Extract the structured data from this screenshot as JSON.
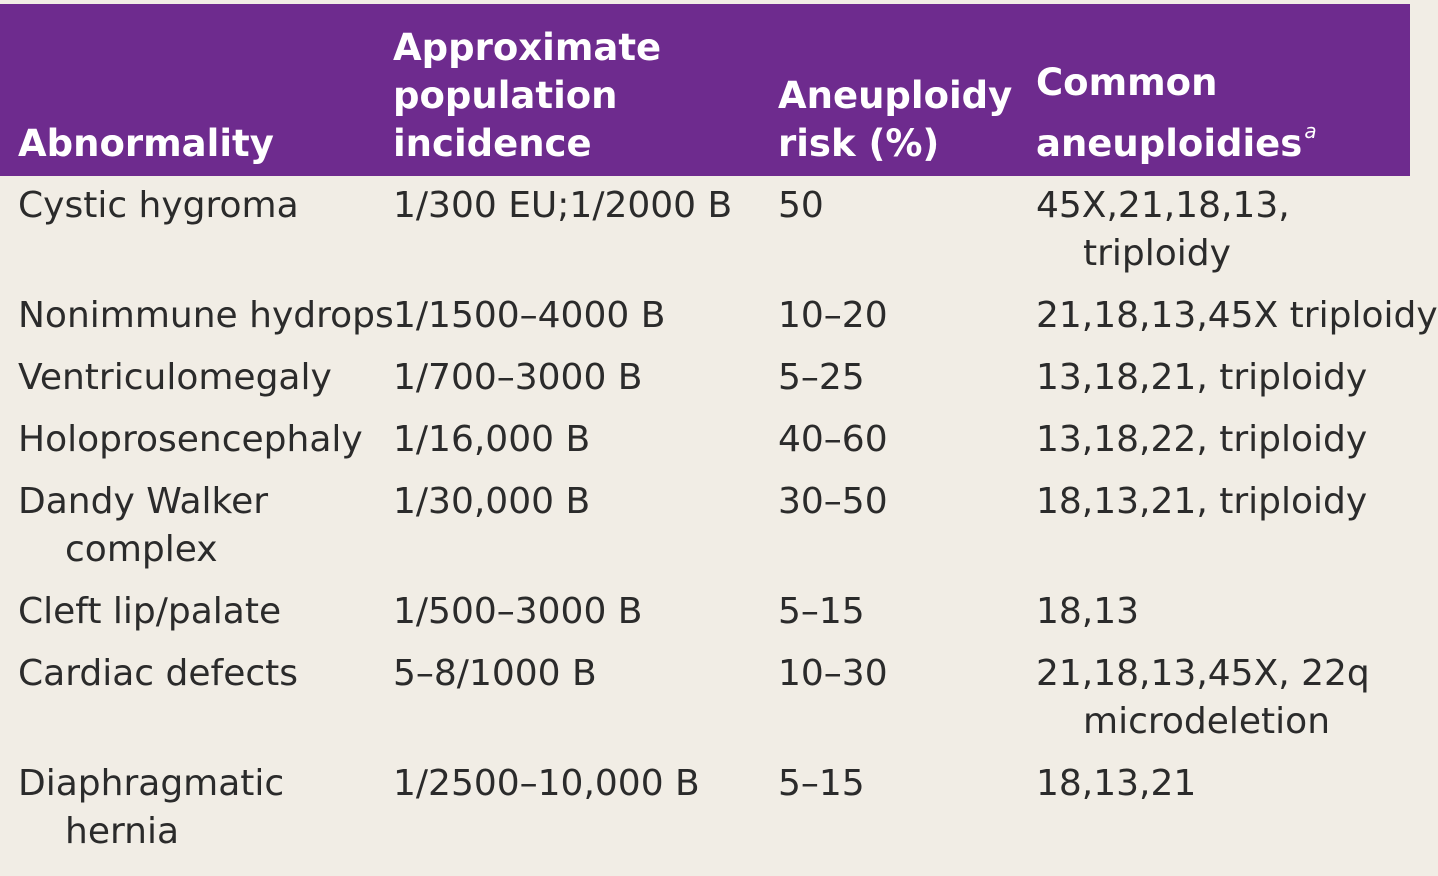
{
  "table": {
    "headers": {
      "abnormality": "Abnormality",
      "incidence": "Approximate\npopulation\nincidence",
      "risk": "Aneuploidy\nrisk (%)",
      "common": "Common\naneuploidies",
      "common_footnote_mark": "a"
    },
    "rows": [
      {
        "abnormality": [
          "Cystic hygroma"
        ],
        "incidence": "1/300 EU;1/2000 B",
        "risk": "50",
        "common": [
          "45X,21,18,13,",
          "triploidy"
        ]
      },
      {
        "abnormality": [
          "Nonimmune hydrops"
        ],
        "incidence": "1/1500–4000 B",
        "risk": "10–20",
        "common": [
          "21,18,13,45X triploidy"
        ]
      },
      {
        "abnormality": [
          "Ventriculomegaly"
        ],
        "incidence": "1/700–3000 B",
        "risk": "5–25",
        "common": [
          "13,18,21, triploidy"
        ]
      },
      {
        "abnormality": [
          "Holoprosencephaly"
        ],
        "incidence": "1/16,000 B",
        "risk": "40–60",
        "common": [
          "13,18,22, triploidy"
        ]
      },
      {
        "abnormality": [
          "Dandy Walker",
          "complex"
        ],
        "incidence": "1/30,000 B",
        "risk": "30–50",
        "common": [
          "18,13,21, triploidy"
        ]
      },
      {
        "abnormality": [
          "Cleft lip/palate"
        ],
        "incidence": "1/500–3000 B",
        "risk": "5–15",
        "common": [
          "18,13"
        ]
      },
      {
        "abnormality": [
          "Cardiac defects"
        ],
        "incidence": "5–8/1000 B",
        "risk": "10–30",
        "common": [
          "21,18,13,45X, 22q",
          "microdeletion"
        ]
      },
      {
        "abnormality": [
          "Diaphragmatic",
          "hernia"
        ],
        "incidence": "1/2500–10,000 B",
        "risk": "5–15",
        "common": [
          "18,13,21"
        ]
      }
    ]
  }
}
